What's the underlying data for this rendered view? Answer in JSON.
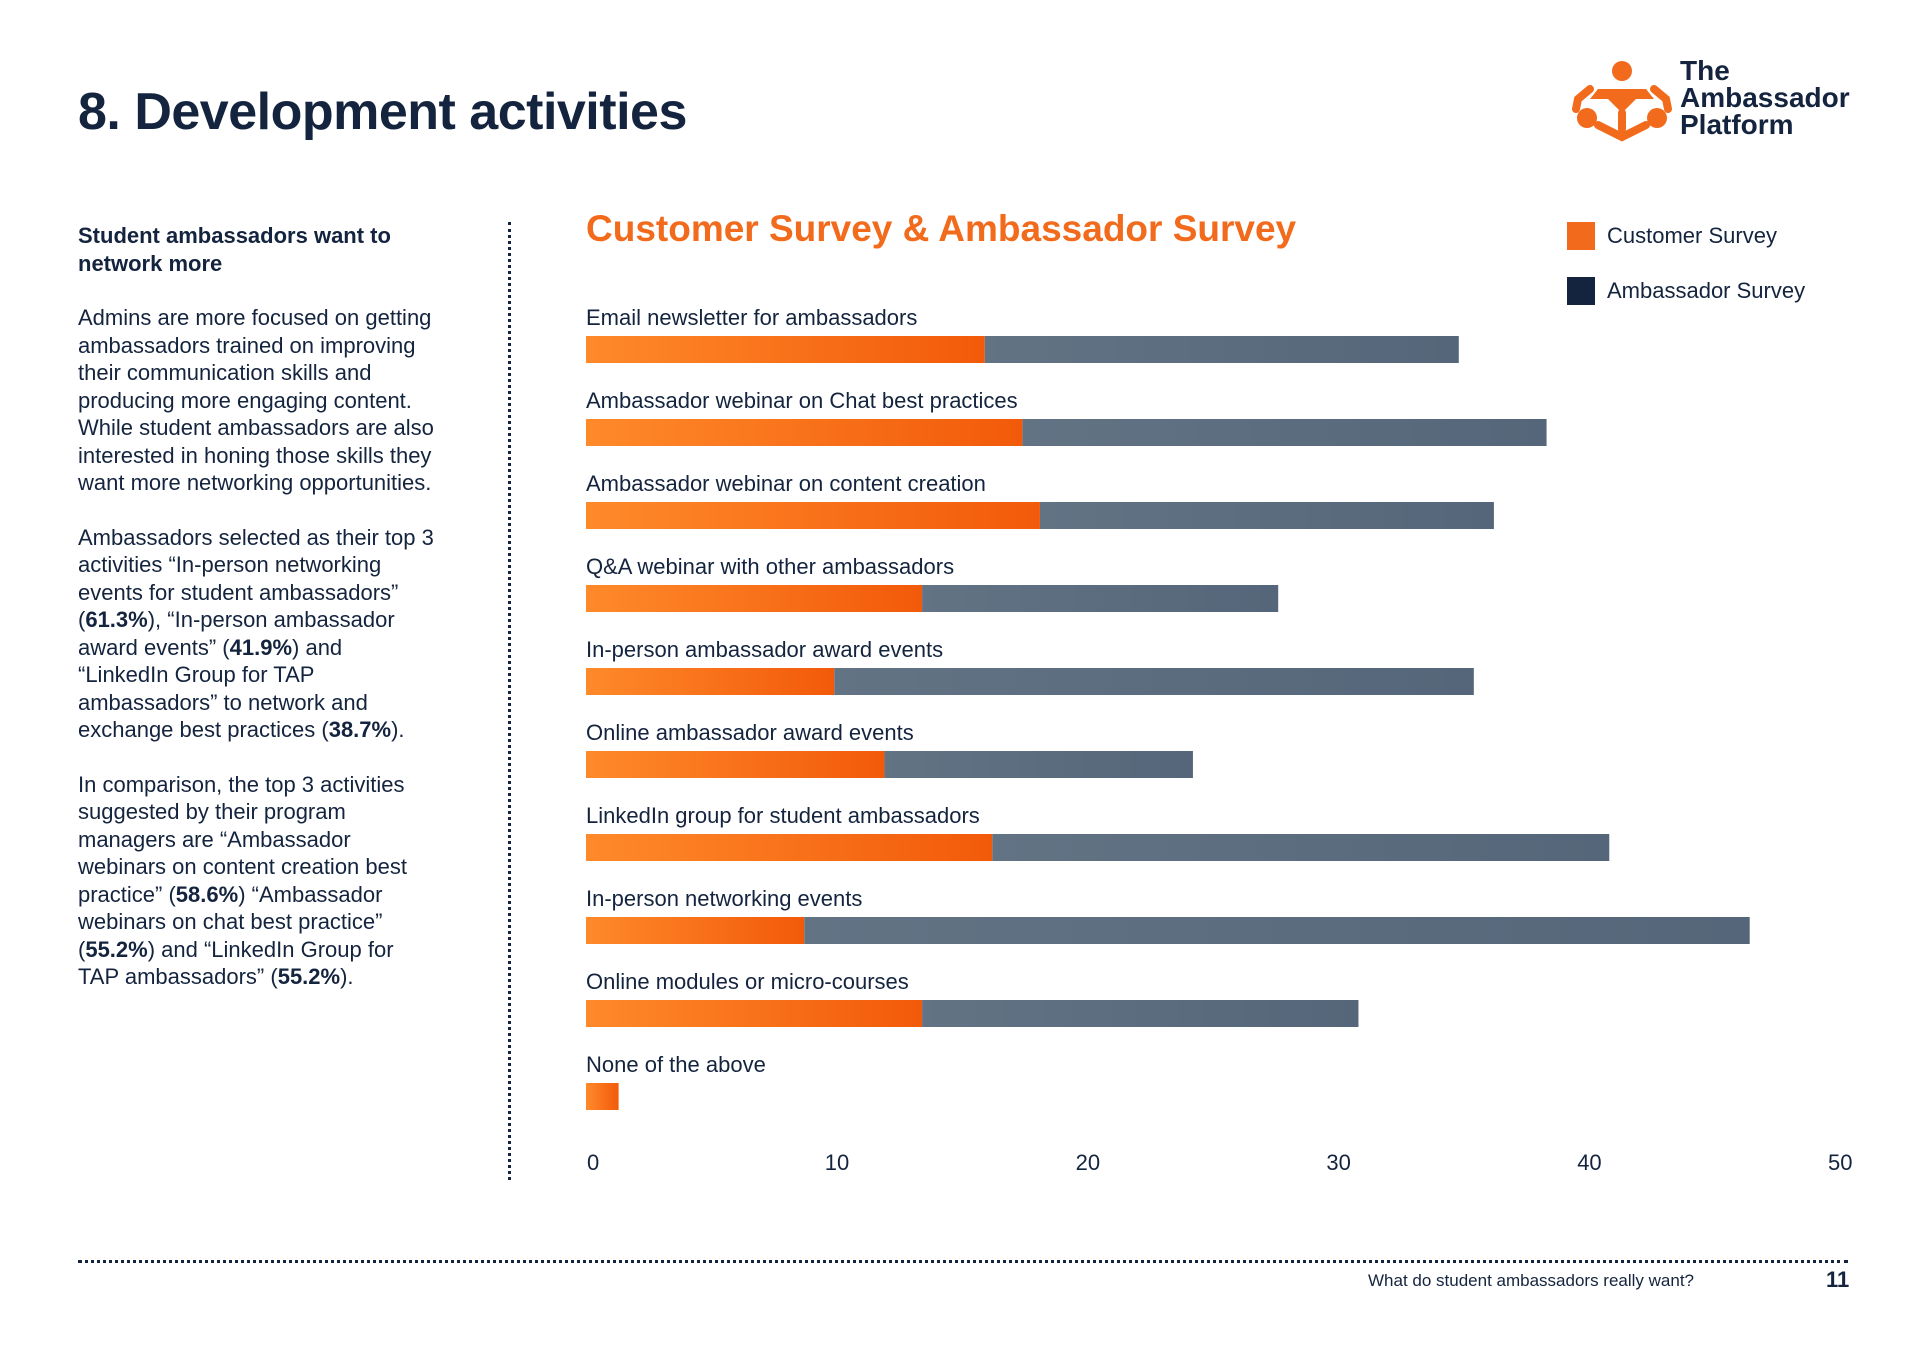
{
  "page": {
    "title": "8. Development activities",
    "logo_lines": [
      "The",
      "Ambassador",
      "Platform"
    ]
  },
  "sidebar": {
    "heading": "Student ambassadors want to network more",
    "p1": "Admins are more focused on getting ambassadors trained on improving their communication skills and producing more engaging content. While student ambassadors are also interested in honing those skills they want more networking opportunities.",
    "p2": {
      "t1": "Ambassadors selected as their top 3 activities “In-person networking events for student ambassadors” (",
      "b1": "61.3%",
      "t2": "), “In-person ambassador award events” (",
      "b2": "41.9%",
      "t3": ") and “LinkedIn Group for TAP ambassadors” to network and exchange best practices (",
      "b3": "38.7%",
      "t4": ")."
    },
    "p3": {
      "t1": "In comparison, the top 3 activities suggested by their program managers are “Ambassador webinars on content creation best practice” (",
      "b1": "58.6%",
      "t2": ") “Ambassador webinars on chat best practice” (",
      "b2": "55.2%",
      "t3": ") and “LinkedIn Group for TAP ambassadors” (",
      "b3": "55.2%",
      "t4": ")."
    }
  },
  "footer": {
    "text": "What do student ambassadors really want?",
    "page_number": "11"
  },
  "colors": {
    "customer": "#f26a1b",
    "ambassador": "#14243e",
    "ambassador_bar": "#5a6b7c",
    "title": "#f26a1b"
  },
  "chart_data": {
    "type": "bar",
    "orientation": "horizontal",
    "stacked": true,
    "title": "Customer Survey & Ambassador Survey",
    "categories": [
      "Email newsletter for ambassadors",
      "Ambassador webinar on Chat best practices",
      "Ambassador webinar on content creation",
      "Q&A webinar with other ambassadors",
      "In-person ambassador award events",
      "Online ambassador award events",
      "LinkedIn group for student ambassadors",
      "In-person networking events",
      "Online modules or micro-courses",
      "None of the above"
    ],
    "series": [
      {
        "name": "Customer Survey",
        "values": [
          15.9,
          17.4,
          18.1,
          13.4,
          9.9,
          11.9,
          16.2,
          8.7,
          13.4,
          1.3
        ]
      },
      {
        "name": "Ambassador Survey",
        "values": [
          18.9,
          20.9,
          18.1,
          14.2,
          25.5,
          12.3,
          24.6,
          37.7,
          17.4,
          0
        ]
      }
    ],
    "xlim": [
      0,
      50
    ],
    "xticks": [
      "0",
      "10",
      "20",
      "30",
      "40",
      "50"
    ],
    "xlabel": "",
    "ylabel": "",
    "legend_position": "top-right",
    "grid": false
  }
}
